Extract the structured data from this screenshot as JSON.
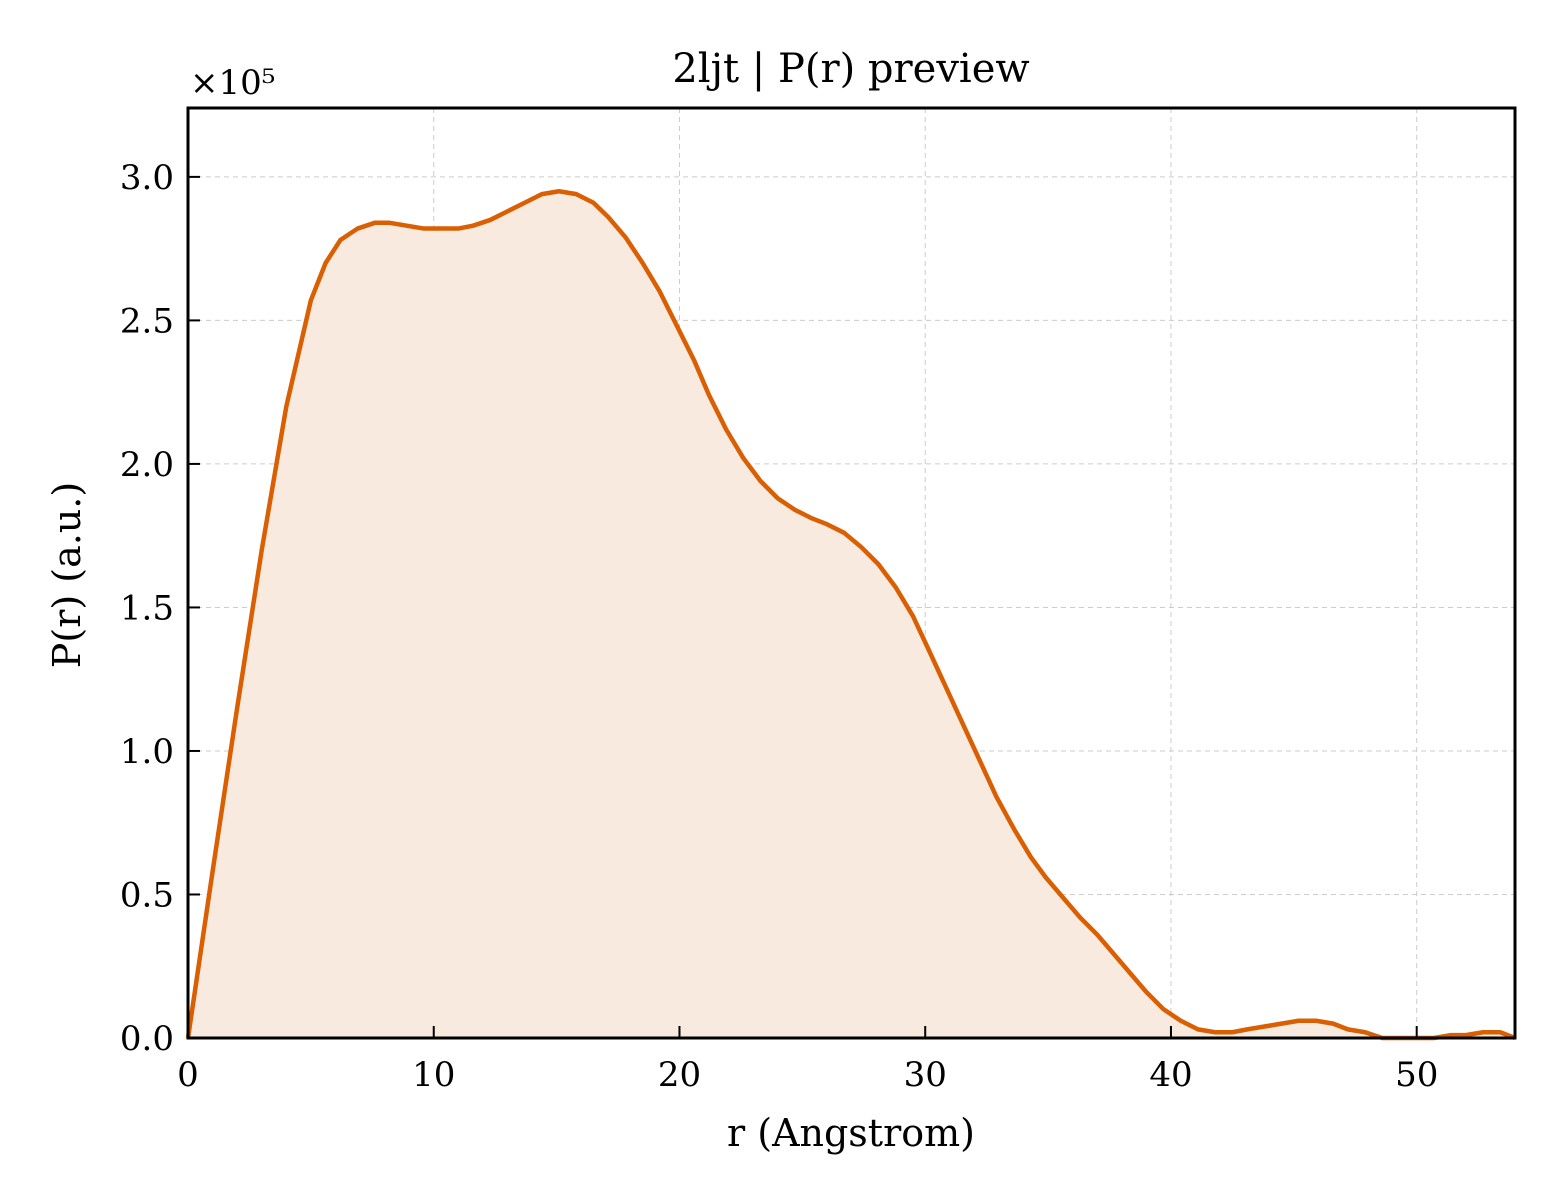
{
  "chart_data": {
    "type": "area",
    "title": "2ljt | P(r) preview",
    "xlabel": "r (Angstrom)",
    "ylabel": "P(r) (a.u.)",
    "y_scale_label": "×10⁵",
    "y_scale_factor": 100000,
    "xlim": [
      0,
      54
    ],
    "ylim": [
      0,
      3.24
    ],
    "x_ticks": [
      0,
      10,
      20,
      30,
      40,
      50
    ],
    "x_tick_labels": [
      "0",
      "10",
      "20",
      "30",
      "40",
      "50"
    ],
    "y_ticks": [
      0.0,
      0.5,
      1.0,
      1.5,
      2.0,
      2.5,
      3.0
    ],
    "y_tick_labels": [
      "0.0",
      "0.5",
      "1.0",
      "1.5",
      "2.0",
      "2.5",
      "3.0"
    ],
    "grid": true,
    "tick_direction": "in",
    "colors": {
      "line": "#d95f02",
      "fill": "#f9eadf",
      "axes": "#000000",
      "grid": "#cccccc"
    },
    "series": [
      {
        "x": [
          0,
          1,
          2,
          3,
          4,
          5,
          5.6,
          6.2,
          6.9,
          7.6,
          8.2,
          8.9,
          9.6,
          10.3,
          11,
          11.6,
          12.3,
          13,
          13.7,
          14.4,
          15.1,
          15.8,
          16.5,
          17.1,
          17.8,
          18.5,
          19.2,
          19.9,
          20.6,
          21.2,
          21.9,
          22.6,
          23.3,
          24,
          24.7,
          25.4,
          26,
          26.7,
          27.4,
          28.1,
          28.8,
          29.5,
          30.1,
          30.8,
          31.5,
          32.2,
          32.9,
          33.6,
          34.3,
          34.9,
          35.6,
          36.3,
          37,
          37.7,
          38.4,
          39,
          39.7,
          40.4,
          41.1,
          41.8,
          42.5,
          43.1,
          43.8,
          44.5,
          45.2,
          45.9,
          46.6,
          47.2,
          47.9,
          48.6,
          49.3,
          50,
          50.7,
          51.4,
          52,
          52.7,
          53.4,
          54
        ],
        "y": [
          0.0,
          0.58,
          1.15,
          1.7,
          2.2,
          2.57,
          2.7,
          2.78,
          2.82,
          2.84,
          2.84,
          2.83,
          2.82,
          2.82,
          2.82,
          2.83,
          2.85,
          2.88,
          2.91,
          2.94,
          2.95,
          2.94,
          2.91,
          2.86,
          2.79,
          2.7,
          2.6,
          2.48,
          2.36,
          2.24,
          2.12,
          2.02,
          1.94,
          1.88,
          1.84,
          1.81,
          1.79,
          1.76,
          1.71,
          1.65,
          1.57,
          1.47,
          1.36,
          1.23,
          1.1,
          0.97,
          0.84,
          0.73,
          0.63,
          0.56,
          0.49,
          0.42,
          0.36,
          0.29,
          0.22,
          0.16,
          0.1,
          0.06,
          0.03,
          0.02,
          0.02,
          0.03,
          0.04,
          0.05,
          0.06,
          0.06,
          0.05,
          0.03,
          0.02,
          0.0,
          0.0,
          0.0,
          0.0,
          0.01,
          0.01,
          0.02,
          0.02,
          0.0
        ]
      }
    ]
  }
}
